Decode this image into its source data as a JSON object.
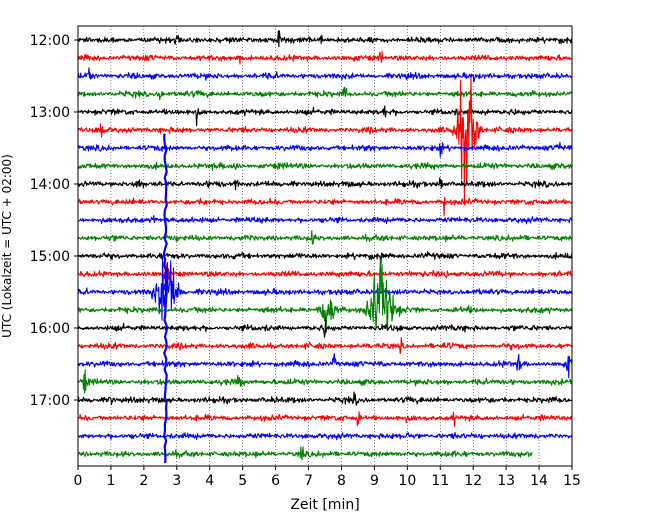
{
  "chart_data": {
    "type": "line",
    "subtype": "helicorder",
    "title": "",
    "xlabel": "Zeit  [min]",
    "ylabel": "UTC (Lokalzeit = UTC + 02:00)",
    "xlim": [
      0,
      15
    ],
    "x_ticks": [
      0,
      1,
      2,
      3,
      4,
      5,
      6,
      7,
      8,
      9,
      10,
      11,
      12,
      13,
      14,
      15
    ],
    "x_tick_labels": [
      "0",
      "1",
      "2",
      "3",
      "4",
      "5",
      "6",
      "7",
      "8",
      "9",
      "10",
      "11",
      "12",
      "13",
      "14",
      "15"
    ],
    "y_ticks": [
      {
        "label": "12:00",
        "trace_index": 0
      },
      {
        "label": "13:00",
        "trace_index": 4
      },
      {
        "label": "14:00",
        "trace_index": 8
      },
      {
        "label": "15:00",
        "trace_index": 12
      },
      {
        "label": "16:00",
        "trace_index": 16
      },
      {
        "label": "17:00",
        "trace_index": 20
      }
    ],
    "grid": {
      "x": true,
      "style": "dotted"
    },
    "trace_minutes": 15,
    "color_cycle": [
      "#000000",
      "#ff0000",
      "#0000ff",
      "#008000"
    ],
    "traces": [
      {
        "color": "#000000",
        "end_min": 15,
        "events": [
          {
            "t": 3.0,
            "amp": 0.9
          },
          {
            "t": 6.1,
            "amp": 0.7
          },
          {
            "t": 7.4,
            "amp": 0.6
          }
        ]
      },
      {
        "color": "#ff0000",
        "end_min": 15,
        "events": [
          {
            "t": 4.9,
            "amp": 0.9
          },
          {
            "t": 9.2,
            "amp": 0.6
          }
        ]
      },
      {
        "color": "#0000ff",
        "end_min": 15,
        "events": [
          {
            "t": 0.35,
            "amp": 1.0
          },
          {
            "t": 12.0,
            "amp": 0.5
          }
        ]
      },
      {
        "color": "#008000",
        "end_min": 15,
        "events": [
          {
            "t": 2.5,
            "amp": 0.9
          },
          {
            "t": 8.1,
            "amp": 0.6
          }
        ]
      },
      {
        "color": "#000000",
        "end_min": 15,
        "events": [
          {
            "t": 3.6,
            "amp": 0.6
          },
          {
            "t": 9.3,
            "amp": 0.6
          },
          {
            "t": 12.4,
            "amp": 0.5
          }
        ]
      },
      {
        "color": "#ff0000",
        "end_min": 15,
        "events": [
          {
            "t": 0.7,
            "amp": 1.4
          },
          {
            "t": 11.8,
            "amp": 5.5,
            "burst": 0.9
          }
        ]
      },
      {
        "color": "#0000ff",
        "end_min": 15,
        "events": [
          {
            "t": 11.0,
            "amp": 0.7
          },
          {
            "t": 14.6,
            "amp": 0.8
          }
        ]
      },
      {
        "color": "#008000",
        "end_min": 15,
        "events": [
          {
            "t": 4.8,
            "amp": 0.5
          }
        ]
      },
      {
        "color": "#000000",
        "end_min": 15,
        "events": [
          {
            "t": 1.8,
            "amp": 0.7
          },
          {
            "t": 4.8,
            "amp": 0.8
          },
          {
            "t": 11.0,
            "amp": 1.0
          }
        ]
      },
      {
        "color": "#ff0000",
        "end_min": 15,
        "events": [
          {
            "t": 11.1,
            "amp": 1.2
          }
        ]
      },
      {
        "color": "#0000ff",
        "end_min": 15,
        "events": [
          {
            "t": 2.3,
            "amp": 0.7
          }
        ]
      },
      {
        "color": "#008000",
        "end_min": 15,
        "events": [
          {
            "t": 7.1,
            "amp": 0.6
          }
        ]
      },
      {
        "color": "#000000",
        "end_min": 15,
        "events": [
          {
            "t": 9.2,
            "amp": 0.5
          }
        ]
      },
      {
        "color": "#ff0000",
        "end_min": 15,
        "events": [
          {
            "t": 2.7,
            "amp": 1.8
          },
          {
            "t": 11.2,
            "amp": 0.5
          }
        ]
      },
      {
        "color": "#0000ff",
        "end_min": 15,
        "events": [
          {
            "t": 2.7,
            "amp": 3.6,
            "burst": 1.0
          }
        ]
      },
      {
        "color": "#008000",
        "end_min": 15,
        "events": [
          {
            "t": 7.6,
            "amp": 1.6,
            "burst": 0.7
          },
          {
            "t": 9.2,
            "amp": 4.0,
            "burst": 1.1
          }
        ]
      },
      {
        "color": "#000000",
        "end_min": 15,
        "events": [
          {
            "t": 7.5,
            "amp": 0.8
          }
        ]
      },
      {
        "color": "#ff0000",
        "end_min": 15,
        "events": [
          {
            "t": 9.8,
            "amp": 0.6
          }
        ]
      },
      {
        "color": "#0000ff",
        "end_min": 15,
        "events": [
          {
            "t": 7.8,
            "amp": 0.9
          },
          {
            "t": 13.4,
            "amp": 0.9
          },
          {
            "t": 14.9,
            "amp": 1.2
          }
        ]
      },
      {
        "color": "#008000",
        "end_min": 15,
        "events": [
          {
            "t": 0.2,
            "amp": 1.0
          },
          {
            "t": 4.9,
            "amp": 0.8
          }
        ]
      },
      {
        "color": "#000000",
        "end_min": 15,
        "events": [
          {
            "t": 1.0,
            "amp": 0.7
          },
          {
            "t": 8.4,
            "amp": 0.5
          }
        ]
      },
      {
        "color": "#ff0000",
        "end_min": 15,
        "events": [
          {
            "t": 8.5,
            "amp": 0.8
          },
          {
            "t": 11.4,
            "amp": 0.6
          }
        ]
      },
      {
        "color": "#0000ff",
        "end_min": 15,
        "events": [
          {
            "t": 10.0,
            "amp": 0.4
          }
        ]
      },
      {
        "color": "#008000",
        "end_min": 13.8,
        "events": [
          {
            "t": 6.8,
            "amp": 1.0
          }
        ]
      }
    ],
    "overlay_spike": {
      "color": "#0000ff",
      "t": 2.65,
      "from_trace": 5.2,
      "to_trace": 23.5
    }
  }
}
